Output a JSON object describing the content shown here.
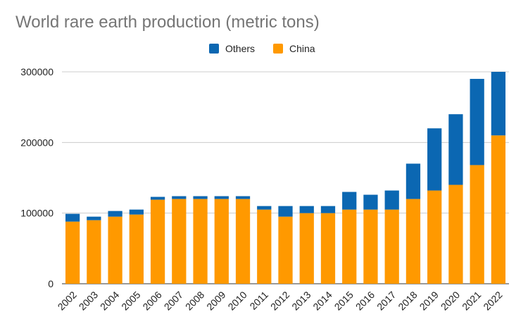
{
  "chart_data": {
    "type": "bar",
    "stacked": true,
    "title": "World rare earth production (metric tons)",
    "categories": [
      "2002",
      "2003",
      "2004",
      "2005",
      "2006",
      "2007",
      "2008",
      "2009",
      "2010",
      "2011",
      "2012",
      "2013",
      "2014",
      "2015",
      "2016",
      "2017",
      "2018",
      "2019",
      "2020",
      "2021",
      "2022"
    ],
    "series": [
      {
        "name": "China",
        "color": "#ff9900",
        "values": [
          88000,
          90000,
          95000,
          98000,
          119000,
          120000,
          120000,
          120000,
          120000,
          105000,
          95000,
          100000,
          100000,
          105000,
          105000,
          105000,
          120000,
          132000,
          140000,
          168000,
          210000
        ]
      },
      {
        "name": "Others",
        "color": "#0b67b2",
        "values": [
          11000,
          5000,
          8000,
          7000,
          4000,
          4000,
          4000,
          4000,
          4000,
          5000,
          15000,
          10000,
          10000,
          25000,
          21000,
          27000,
          50000,
          88000,
          100000,
          122000,
          90000
        ]
      }
    ],
    "legend_order": [
      "Others",
      "China"
    ],
    "legend_position": "top",
    "ylim": [
      0,
      300000
    ],
    "yticks": [
      0,
      100000,
      200000,
      300000
    ],
    "grid": true
  }
}
